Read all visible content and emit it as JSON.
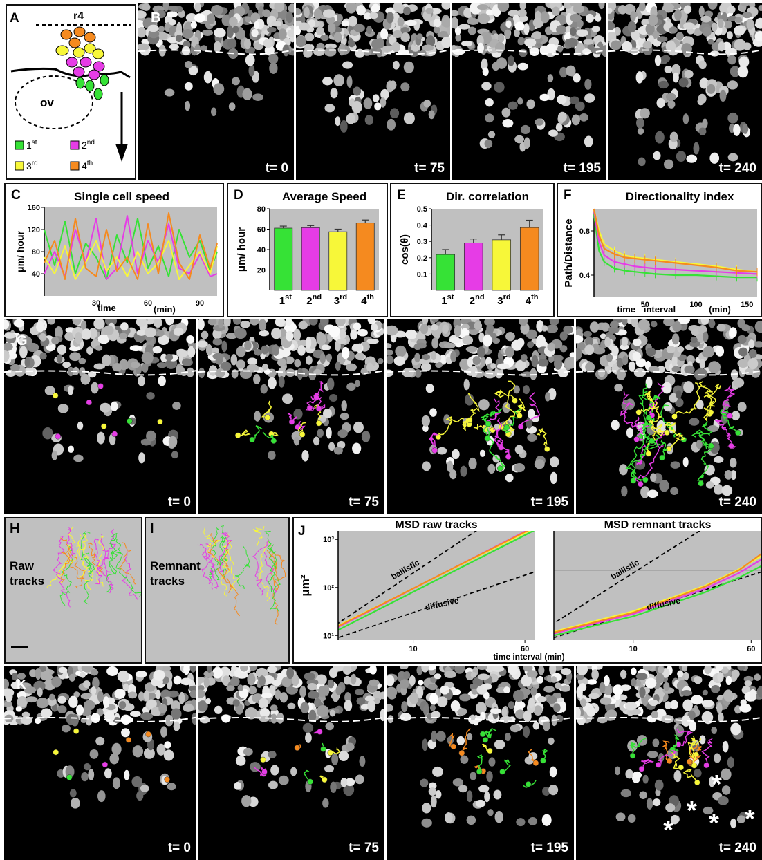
{
  "panelA": {
    "label": "A",
    "r4": "r4",
    "ov": "ov",
    "legend": [
      {
        "sup_base": "1",
        "sup": "st",
        "color": "#36e236"
      },
      {
        "sup_base": "2",
        "sup": "nd",
        "color": "#e63ce6"
      },
      {
        "sup_base": "3",
        "sup": "rd",
        "color": "#f7f739"
      },
      {
        "sup_base": "4",
        "sup": "th",
        "color": "#f58a1f"
      }
    ]
  },
  "panelB": {
    "label": "B",
    "times": [
      "t= 0",
      "t= 75",
      "t= 195",
      "t= 240"
    ]
  },
  "panelG": {
    "label": "G",
    "times": [
      "t= 0",
      "t= 75",
      "t= 195",
      "t= 240"
    ]
  },
  "panelK": {
    "label": "K",
    "times": [
      "t= 0",
      "t= 75",
      "t= 195",
      "t= 240"
    ]
  },
  "panelH": {
    "label": "H",
    "text1": "Raw",
    "text2": "tracks"
  },
  "panelI": {
    "label": "I",
    "text1": "Remnant",
    "text2": "tracks"
  },
  "colors": {
    "first": "#36e236",
    "second": "#e63ce6",
    "third": "#f7f739",
    "fourth": "#f58a1f",
    "plot_bg": "#c0c0c0"
  },
  "chart_data": [
    {
      "id": "C",
      "type": "line",
      "label": "C",
      "title": "Single cell speed",
      "ylabel": "μm/ hour",
      "xlabel": "time",
      "xunit": "(min)",
      "ylim": [
        0,
        160
      ],
      "xlim": [
        0,
        100
      ],
      "yticks": [
        "40",
        "80",
        "120",
        "160"
      ],
      "xticks": [
        "30",
        "60",
        "90"
      ],
      "series": [
        {
          "color": "#36e236",
          "x": [
            0,
            6,
            12,
            18,
            24,
            30,
            36,
            42,
            48,
            54,
            60,
            66,
            72,
            78,
            84,
            90,
            96,
            100
          ],
          "y": [
            120,
            55,
            135,
            40,
            95,
            70,
            30,
            110,
            60,
            140,
            50,
            90,
            35,
            120,
            70,
            100,
            45,
            80
          ]
        },
        {
          "color": "#e63ce6",
          "x": [
            0,
            6,
            12,
            18,
            24,
            30,
            36,
            42,
            48,
            54,
            60,
            66,
            72,
            78,
            84,
            90,
            96,
            100
          ],
          "y": [
            40,
            80,
            35,
            120,
            60,
            140,
            30,
            50,
            145,
            40,
            100,
            60,
            130,
            50,
            40,
            75,
            35,
            40
          ]
        },
        {
          "color": "#f7f739",
          "x": [
            0,
            6,
            12,
            18,
            24,
            30,
            36,
            42,
            48,
            54,
            60,
            66,
            72,
            78,
            84,
            90,
            96,
            100
          ],
          "y": [
            70,
            40,
            90,
            30,
            60,
            100,
            45,
            70,
            35,
            80,
            40,
            60,
            100,
            30,
            55,
            80,
            40,
            90
          ]
        },
        {
          "color": "#f58a1f",
          "x": [
            0,
            6,
            12,
            18,
            24,
            30,
            36,
            42,
            48,
            54,
            60,
            66,
            72,
            78,
            84,
            90,
            96,
            100
          ],
          "y": [
            60,
            100,
            30,
            140,
            50,
            35,
            120,
            45,
            70,
            30,
            130,
            40,
            150,
            60,
            30,
            110,
            50,
            95
          ]
        }
      ]
    },
    {
      "id": "D",
      "type": "bar",
      "label": "D",
      "title": "Average Speed",
      "ylabel": "μm/ hour",
      "ylim": [
        0,
        80
      ],
      "yticks": [
        "20",
        "40",
        "60",
        "80"
      ],
      "categories": [
        {
          "base": "1",
          "sup": "st"
        },
        {
          "base": "2",
          "sup": "nd"
        },
        {
          "base": "3",
          "sup": "rd"
        },
        {
          "base": "4",
          "sup": "th"
        }
      ],
      "values": [
        61,
        61.5,
        57.5,
        66
      ],
      "errors": [
        2,
        2,
        2.5,
        3
      ],
      "colors": [
        "#36e236",
        "#e63ce6",
        "#f7f739",
        "#f58a1f"
      ]
    },
    {
      "id": "E",
      "type": "bar",
      "label": "E",
      "title": "Dir. correlation",
      "ylabel": "cos(θ)",
      "ylim": [
        0,
        0.5
      ],
      "yticks": [
        "0.1",
        "0.2",
        "0.3",
        "0.4",
        "0.5"
      ],
      "categories": [
        {
          "base": "1",
          "sup": "st"
        },
        {
          "base": "2",
          "sup": "nd"
        },
        {
          "base": "3",
          "sup": "rd"
        },
        {
          "base": "4",
          "sup": "th"
        }
      ],
      "values": [
        0.22,
        0.29,
        0.31,
        0.385
      ],
      "errors": [
        0.03,
        0.025,
        0.03,
        0.045
      ],
      "colors": [
        "#36e236",
        "#e63ce6",
        "#f7f739",
        "#f58a1f"
      ]
    },
    {
      "id": "F",
      "type": "line",
      "label": "F",
      "title": "Directionality index",
      "ylabel": "Path/Distance",
      "xlabel_a": "time",
      "xlabel_b": "interval",
      "xunit": "(min)",
      "ylim": [
        0.2,
        1.0
      ],
      "xlim": [
        0,
        160
      ],
      "yticks": [
        "0.4",
        "0.8"
      ],
      "xticks": [
        "50",
        "100",
        "150"
      ],
      "series": [
        {
          "color": "#36e236",
          "x": [
            0,
            5,
            10,
            20,
            30,
            40,
            50,
            60,
            80,
            100,
            120,
            140,
            160
          ],
          "y": [
            0.95,
            0.62,
            0.52,
            0.46,
            0.44,
            0.43,
            0.42,
            0.41,
            0.4,
            0.4,
            0.39,
            0.38,
            0.38
          ]
        },
        {
          "color": "#e63ce6",
          "x": [
            0,
            5,
            10,
            20,
            30,
            40,
            50,
            60,
            80,
            100,
            120,
            140,
            160
          ],
          "y": [
            0.98,
            0.7,
            0.58,
            0.52,
            0.5,
            0.48,
            0.47,
            0.46,
            0.45,
            0.44,
            0.43,
            0.42,
            0.41
          ]
        },
        {
          "color": "#f7f739",
          "x": [
            0,
            5,
            10,
            20,
            30,
            40,
            50,
            60,
            80,
            100,
            120,
            140,
            160
          ],
          "y": [
            0.99,
            0.8,
            0.68,
            0.62,
            0.58,
            0.56,
            0.55,
            0.54,
            0.52,
            0.5,
            0.48,
            0.45,
            0.43
          ]
        },
        {
          "color": "#f58a1f",
          "x": [
            0,
            5,
            10,
            20,
            30,
            40,
            50,
            60,
            80,
            100,
            120,
            140,
            160
          ],
          "y": [
            1.0,
            0.76,
            0.64,
            0.59,
            0.56,
            0.55,
            0.54,
            0.53,
            0.51,
            0.49,
            0.47,
            0.44,
            0.43
          ]
        }
      ]
    },
    {
      "id": "J1",
      "type": "line",
      "label": "J",
      "title": "MSD raw tracks",
      "ylabel": "μm²",
      "xscale": "log",
      "yscale": "log",
      "xlim": [
        3,
        70
      ],
      "ylim": [
        8,
        1500
      ],
      "xticks": [
        "10",
        "60"
      ],
      "yticks": [
        "10¹",
        "10²",
        "10³"
      ],
      "annotations": [
        "ballistic",
        "diffusive"
      ],
      "series": [
        {
          "color": "#36e236",
          "x": [
            3,
            70
          ],
          "y": [
            13,
            1550
          ]
        },
        {
          "color": "#e63ce6",
          "x": [
            3,
            70
          ],
          "y": [
            15,
            1850
          ]
        },
        {
          "color": "#f7f739",
          "x": [
            3,
            70
          ],
          "y": [
            16,
            1700
          ]
        },
        {
          "color": "#f58a1f",
          "x": [
            3,
            70
          ],
          "y": [
            15.5,
            1800
          ]
        }
      ],
      "references": [
        {
          "x": [
            2,
            70
          ],
          "y": [
            8,
            9800
          ]
        },
        {
          "x": [
            2,
            70
          ],
          "y": [
            6,
            210
          ]
        }
      ]
    },
    {
      "id": "J2",
      "type": "line",
      "title": "MSD remnant tracks",
      "xscale": "log",
      "yscale": "log",
      "xlim": [
        3,
        70
      ],
      "ylim": [
        8,
        1500
      ],
      "xticks": [
        "10",
        "60"
      ],
      "xlabel": "time  interval (min)",
      "annotations": [
        "ballistic",
        "diffusive"
      ],
      "series": [
        {
          "color": "#36e236",
          "x": [
            3,
            10,
            30,
            50,
            70
          ],
          "y": [
            10,
            25,
            80,
            160,
            280
          ]
        },
        {
          "color": "#e63ce6",
          "x": [
            3,
            10,
            30,
            50,
            70
          ],
          "y": [
            11,
            28,
            95,
            200,
            380
          ]
        },
        {
          "color": "#f7f739",
          "x": [
            3,
            10,
            30,
            50,
            70
          ],
          "y": [
            12,
            32,
            110,
            240,
            450
          ]
        },
        {
          "color": "#f58a1f",
          "x": [
            3,
            10,
            30,
            50,
            70
          ],
          "y": [
            11.5,
            30,
            105,
            230,
            500
          ]
        }
      ],
      "references": [
        {
          "x": [
            2,
            70
          ],
          "y": [
            8,
            9800
          ]
        },
        {
          "x": [
            2,
            70
          ],
          "y": [
            6,
            210
          ]
        }
      ]
    }
  ],
  "symbols": {
    "asterisk": "*"
  }
}
